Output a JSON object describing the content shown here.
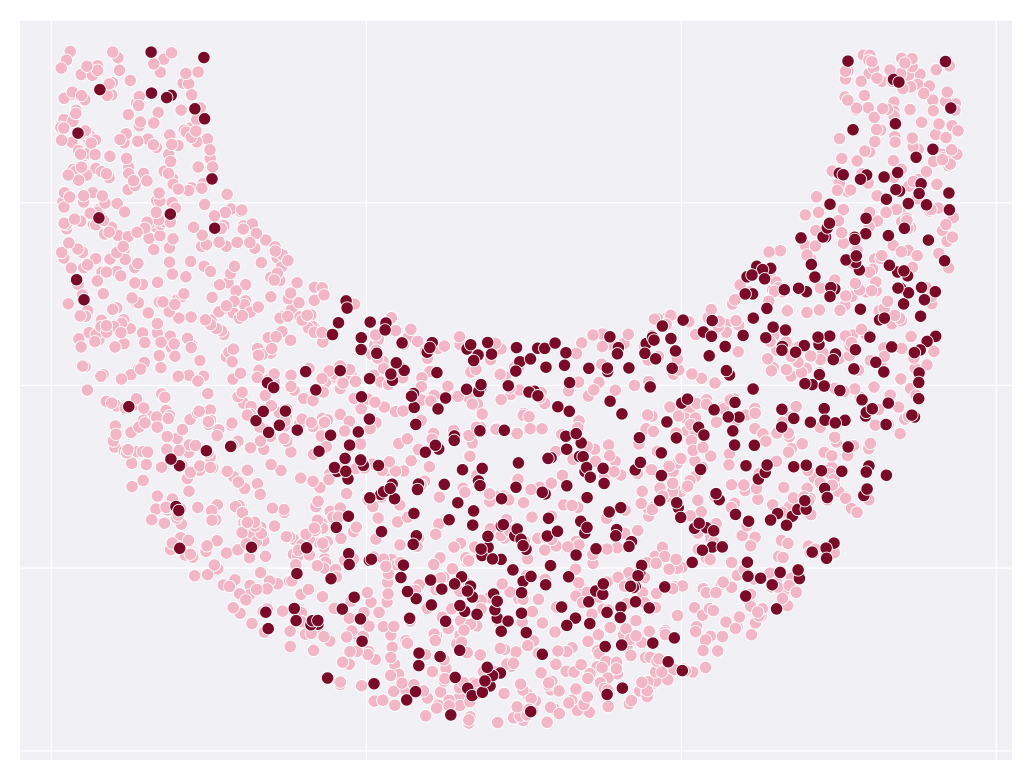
{
  "chart_data": {
    "type": "scatter",
    "title": "",
    "xlabel": "",
    "ylabel": "",
    "grid": true,
    "legend": "none",
    "tick_labels": "none",
    "xlim": [
      -3.2,
      3.1
    ],
    "ylim": [
      -2.05,
      2.0
    ],
    "x_gridlines": [
      -3,
      -1,
      1,
      3
    ],
    "y_gridlines": [
      -2,
      -1,
      0,
      1,
      2
    ],
    "colors": {
      "background": "#f1f0f5",
      "grid": "#ffffff",
      "series_light": "#f2b6c6",
      "series_dark": "#7a0a28",
      "marker_edge": "#ffffff"
    },
    "series": [
      {
        "color_key": "series_light",
        "n_points": 1450
      },
      {
        "color_key": "series_dark",
        "n_points": 620
      }
    ],
    "shape_description": "crescent"
  }
}
